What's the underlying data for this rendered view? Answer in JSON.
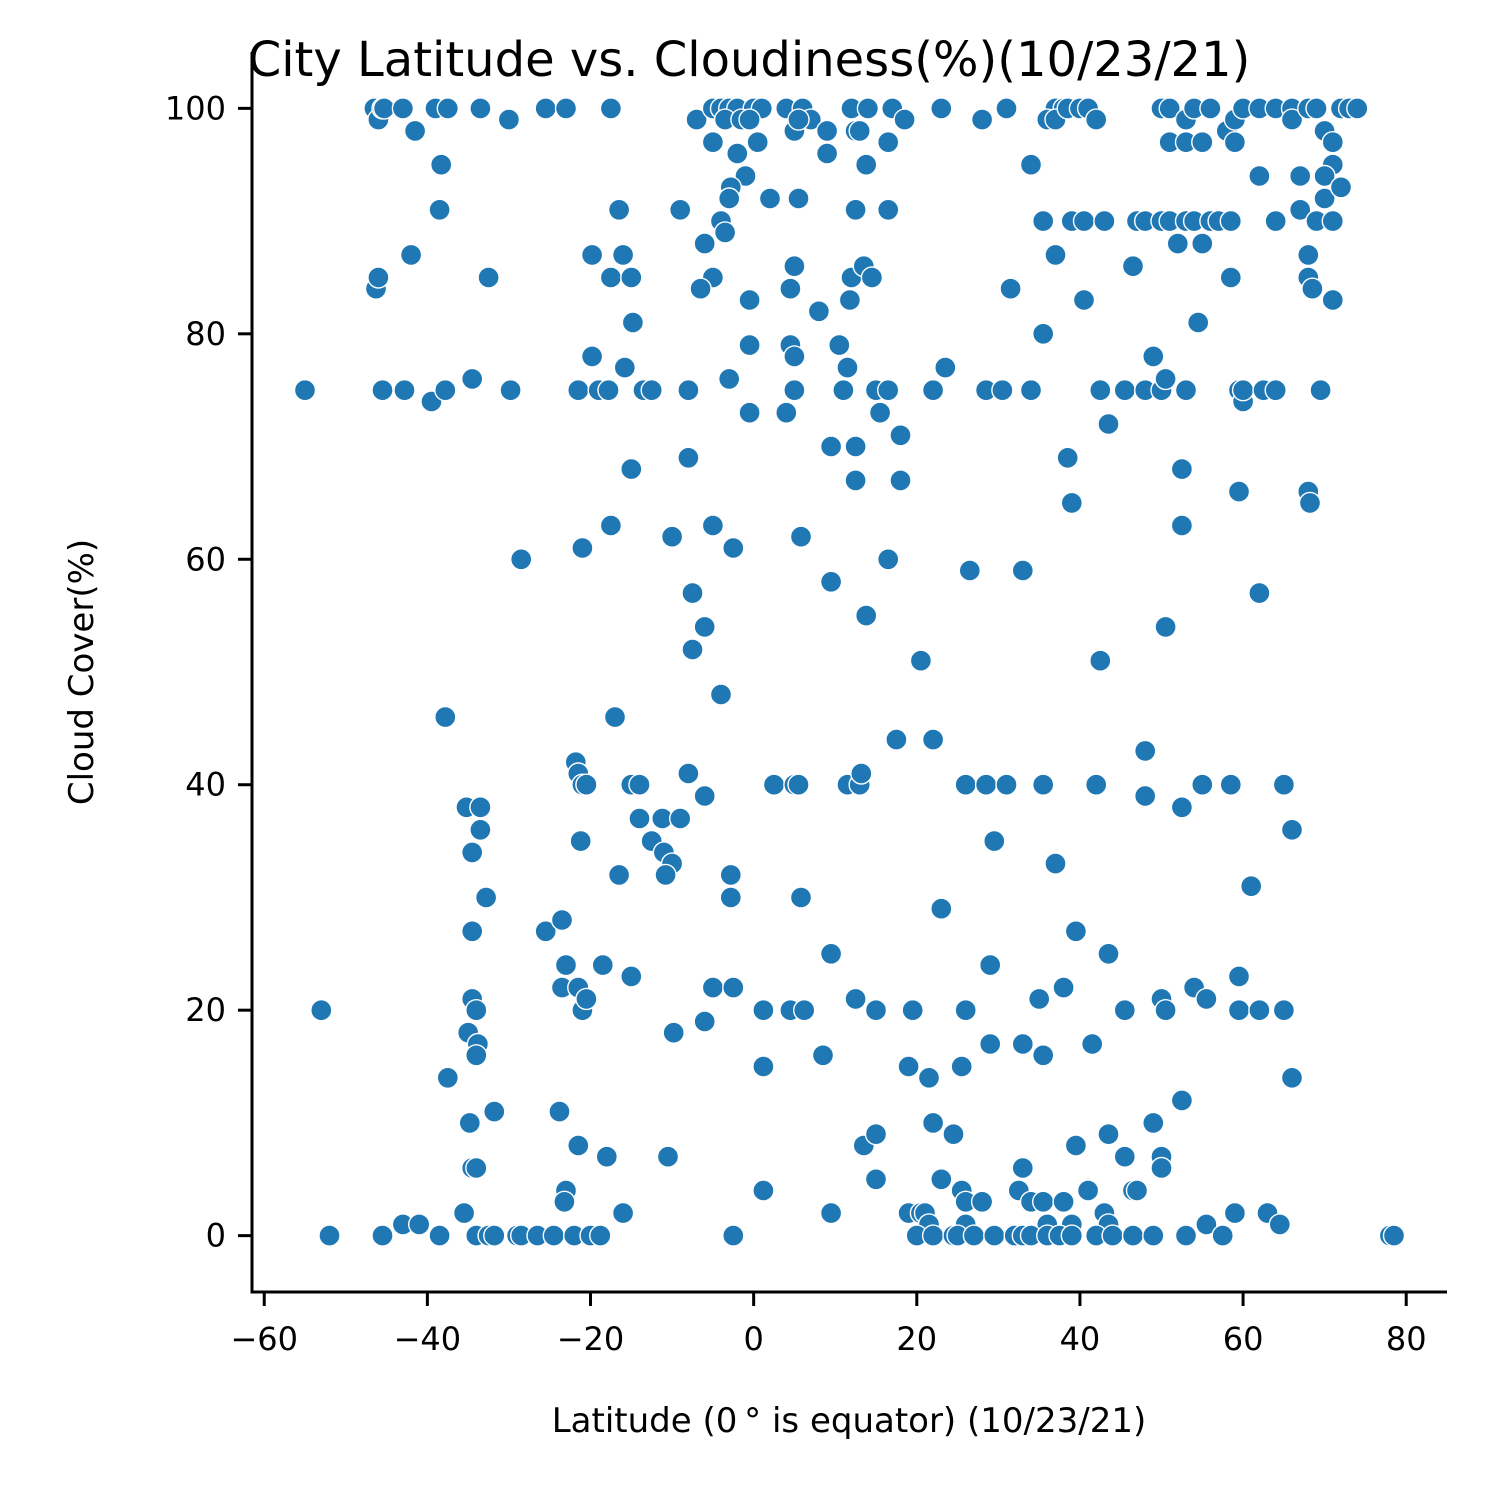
{
  "chart_data": {
    "type": "scatter",
    "title": "City Latitude vs. Cloudiness(%)(10/23/21)",
    "xlabel": "Latitude (0 °  is equator) (10/23/21)",
    "ylabel": "Cloud Cover(%)",
    "xlim": [
      -61.5,
      85
    ],
    "ylim": [
      -5,
      105
    ],
    "xticks": [
      -60,
      -40,
      -20,
      0,
      20,
      40,
      60,
      80
    ],
    "xtick_labels": [
      "−60",
      "−40",
      "−20",
      "0",
      "20",
      "40",
      "60",
      "80"
    ],
    "yticks": [
      0,
      20,
      40,
      60,
      80,
      100
    ],
    "ytick_labels": [
      "0",
      "20",
      "40",
      "60",
      "80",
      "100"
    ],
    "grid": false,
    "legend": "none",
    "point_color": "#1f77b4",
    "points": [
      [
        -46.5,
        100
      ],
      [
        -46,
        99
      ],
      [
        -45.5,
        100
      ],
      [
        -45.3,
        100
      ],
      [
        -43,
        100
      ],
      [
        -41.5,
        98
      ],
      [
        -39,
        100
      ],
      [
        -37.5,
        100
      ],
      [
        -33.5,
        100
      ],
      [
        -30,
        99
      ],
      [
        -25.5,
        100
      ],
      [
        -23,
        100
      ],
      [
        -17.5,
        100
      ],
      [
        -38.3,
        95
      ],
      [
        -38.5,
        91
      ],
      [
        -46.3,
        84
      ],
      [
        -46,
        85
      ],
      [
        -42,
        87
      ],
      [
        -32.5,
        85
      ],
      [
        -55,
        75
      ],
      [
        -45.5,
        75
      ],
      [
        -42.8,
        75
      ],
      [
        -39.5,
        74
      ],
      [
        -37.8,
        75
      ],
      [
        -34.5,
        76
      ],
      [
        -29.8,
        75
      ],
      [
        -21.5,
        75
      ],
      [
        -19,
        75
      ],
      [
        -17.8,
        75
      ],
      [
        -13.5,
        75
      ],
      [
        -12.5,
        75
      ],
      [
        -8,
        75
      ],
      [
        -19.8,
        87
      ],
      [
        -16.5,
        91
      ],
      [
        -17.5,
        85
      ],
      [
        -16,
        87
      ],
      [
        -15,
        85
      ],
      [
        -14.8,
        81
      ],
      [
        -19.8,
        78
      ],
      [
        -15.8,
        77
      ],
      [
        -15,
        68
      ],
      [
        -17.5,
        63
      ],
      [
        -21,
        61
      ],
      [
        -28.5,
        60
      ],
      [
        -10,
        62
      ],
      [
        -37.8,
        46
      ],
      [
        -17,
        46
      ],
      [
        -21.8,
        42
      ],
      [
        -21.5,
        41
      ],
      [
        -21,
        40
      ],
      [
        -20.5,
        40
      ],
      [
        -15,
        40
      ],
      [
        -14,
        40
      ],
      [
        -35.2,
        38
      ],
      [
        -33.5,
        38
      ],
      [
        -14,
        37
      ],
      [
        -11.2,
        37
      ],
      [
        -9,
        37
      ],
      [
        -33.5,
        36
      ],
      [
        -12.5,
        35
      ],
      [
        -21.2,
        35
      ],
      [
        -34.5,
        34
      ],
      [
        -11,
        34
      ],
      [
        -10,
        33
      ],
      [
        -16.5,
        32
      ],
      [
        -10.8,
        32
      ],
      [
        -32.8,
        30
      ],
      [
        -25.5,
        27
      ],
      [
        -34.5,
        27
      ],
      [
        -23.5,
        28
      ],
      [
        -23,
        24
      ],
      [
        -23.5,
        22
      ],
      [
        -21.5,
        22
      ],
      [
        -18.5,
        24
      ],
      [
        -15,
        23
      ],
      [
        -34.5,
        21
      ],
      [
        -34,
        20
      ],
      [
        -21,
        20
      ],
      [
        -20.5,
        21
      ],
      [
        -53,
        20
      ],
      [
        -35,
        18
      ],
      [
        -33.8,
        17
      ],
      [
        -34,
        16
      ],
      [
        -37.5,
        14
      ],
      [
        -31.8,
        11
      ],
      [
        -34.8,
        10
      ],
      [
        -23.8,
        11
      ],
      [
        -21.5,
        8
      ],
      [
        -18,
        7
      ],
      [
        -34.5,
        6
      ],
      [
        -34,
        6
      ],
      [
        -23,
        4
      ],
      [
        -23.2,
        3
      ],
      [
        -35.5,
        2
      ],
      [
        -16,
        2
      ],
      [
        -43,
        1
      ],
      [
        -41,
        1
      ],
      [
        -52,
        0
      ],
      [
        -45.5,
        0
      ],
      [
        -38.5,
        0
      ],
      [
        -34,
        0
      ],
      [
        -32.5,
        0
      ],
      [
        -31.8,
        0
      ],
      [
        -29,
        0
      ],
      [
        -28.5,
        0
      ],
      [
        -26.5,
        0
      ],
      [
        -24.5,
        0
      ],
      [
        -22,
        0
      ],
      [
        -20,
        0
      ],
      [
        -18.8,
        0
      ],
      [
        -7,
        99
      ],
      [
        -5,
        100
      ],
      [
        -4,
        100
      ],
      [
        -3,
        100
      ],
      [
        -2,
        100
      ],
      [
        -1,
        99
      ],
      [
        0,
        100
      ],
      [
        1,
        100
      ],
      [
        4,
        100
      ],
      [
        6,
        100
      ],
      [
        7,
        99
      ],
      [
        9,
        98
      ],
      [
        12,
        100
      ],
      [
        14,
        100
      ],
      [
        17,
        100
      ],
      [
        -3.5,
        99
      ],
      [
        -1.5,
        99
      ],
      [
        -0.5,
        99
      ],
      [
        5,
        98
      ],
      [
        5.5,
        99
      ],
      [
        12.5,
        98
      ],
      [
        13,
        98
      ],
      [
        9,
        96
      ],
      [
        -2,
        96
      ],
      [
        -5,
        97
      ],
      [
        0.5,
        97
      ],
      [
        16.5,
        97
      ],
      [
        13.8,
        95
      ],
      [
        -1,
        94
      ],
      [
        -2.8,
        93
      ],
      [
        -3,
        92
      ],
      [
        2,
        92
      ],
      [
        5.5,
        92
      ],
      [
        12.5,
        91
      ],
      [
        16.5,
        91
      ],
      [
        -9,
        91
      ],
      [
        -4,
        90
      ],
      [
        -3.5,
        89
      ],
      [
        -6,
        88
      ],
      [
        -5,
        85
      ],
      [
        -6.5,
        84
      ],
      [
        -0.5,
        83
      ],
      [
        4.5,
        84
      ],
      [
        5,
        86
      ],
      [
        8,
        82
      ],
      [
        12,
        85
      ],
      [
        13.5,
        86
      ],
      [
        14.5,
        85
      ],
      [
        11.8,
        83
      ],
      [
        -0.5,
        79
      ],
      [
        4.5,
        79
      ],
      [
        5,
        78
      ],
      [
        10.5,
        79
      ],
      [
        11.5,
        77
      ],
      [
        -3,
        76
      ],
      [
        5,
        75
      ],
      [
        11,
        75
      ],
      [
        15,
        75
      ],
      [
        16.5,
        75
      ],
      [
        -0.5,
        73
      ],
      [
        4,
        73
      ],
      [
        15.5,
        73
      ],
      [
        18,
        71
      ],
      [
        9.5,
        70
      ],
      [
        12.5,
        70
      ],
      [
        12.5,
        67
      ],
      [
        18,
        67
      ],
      [
        -8,
        69
      ],
      [
        -5,
        63
      ],
      [
        -2.5,
        61
      ],
      [
        5.8,
        62
      ],
      [
        16.5,
        60
      ],
      [
        9.5,
        58
      ],
      [
        -7.5,
        57
      ],
      [
        -6,
        54
      ],
      [
        -7.5,
        52
      ],
      [
        13.8,
        55
      ],
      [
        -4,
        48
      ],
      [
        17.5,
        44
      ],
      [
        -8,
        41
      ],
      [
        -6,
        39
      ],
      [
        2.5,
        40
      ],
      [
        5,
        40
      ],
      [
        5.5,
        40
      ],
      [
        11.5,
        40
      ],
      [
        13,
        40
      ],
      [
        13.2,
        41
      ],
      [
        -2.8,
        32
      ],
      [
        -2.8,
        30
      ],
      [
        5.8,
        30
      ],
      [
        -5,
        22
      ],
      [
        -2.5,
        22
      ],
      [
        -6,
        19
      ],
      [
        -9.8,
        18
      ],
      [
        1.2,
        20
      ],
      [
        4.5,
        20
      ],
      [
        6.2,
        20
      ],
      [
        12.5,
        21
      ],
      [
        15,
        20
      ],
      [
        9.5,
        25
      ],
      [
        8.5,
        16
      ],
      [
        1.2,
        15
      ],
      [
        -10.5,
        7
      ],
      [
        1.2,
        4
      ],
      [
        9.5,
        2
      ],
      [
        -2.5,
        0
      ],
      [
        13.5,
        8
      ],
      [
        15,
        9
      ],
      [
        15,
        5
      ],
      [
        23,
        100
      ],
      [
        28,
        99
      ],
      [
        31,
        100
      ],
      [
        37,
        100
      ],
      [
        38,
        100
      ],
      [
        36,
        99
      ],
      [
        37,
        99
      ],
      [
        38.5,
        100
      ],
      [
        40,
        100
      ],
      [
        41,
        100
      ],
      [
        42,
        99
      ],
      [
        50,
        100
      ],
      [
        51,
        100
      ],
      [
        53,
        99
      ],
      [
        54,
        100
      ],
      [
        56,
        100
      ],
      [
        58,
        98
      ],
      [
        59,
        97
      ],
      [
        59,
        99
      ],
      [
        60,
        100
      ],
      [
        62,
        100
      ],
      [
        64,
        100
      ],
      [
        66,
        100
      ],
      [
        66,
        99
      ],
      [
        68,
        100
      ],
      [
        69,
        100
      ],
      [
        70,
        98
      ],
      [
        71,
        97
      ],
      [
        71,
        95
      ],
      [
        72,
        100
      ],
      [
        73,
        100
      ],
      [
        74,
        100
      ],
      [
        18.5,
        99
      ],
      [
        34,
        95
      ],
      [
        35.5,
        90
      ],
      [
        39,
        90
      ],
      [
        40.5,
        90
      ],
      [
        43,
        90
      ],
      [
        47,
        90
      ],
      [
        48,
        90
      ],
      [
        50,
        90
      ],
      [
        51,
        90
      ],
      [
        53,
        90
      ],
      [
        54,
        90
      ],
      [
        56,
        90
      ],
      [
        57,
        90
      ],
      [
        58.5,
        90
      ],
      [
        64,
        90
      ],
      [
        62,
        94
      ],
      [
        67,
        94
      ],
      [
        67,
        91
      ],
      [
        70,
        94
      ],
      [
        70,
        92
      ],
      [
        72,
        93
      ],
      [
        69,
        90
      ],
      [
        71,
        90
      ],
      [
        51,
        97
      ],
      [
        53,
        97
      ],
      [
        55,
        97
      ],
      [
        52,
        88
      ],
      [
        55,
        88
      ],
      [
        58.5,
        85
      ],
      [
        68,
        87
      ],
      [
        68,
        85
      ],
      [
        68.5,
        84
      ],
      [
        71,
        83
      ],
      [
        31.5,
        84
      ],
      [
        37,
        87
      ],
      [
        40.5,
        83
      ],
      [
        54.5,
        81
      ],
      [
        35.5,
        80
      ],
      [
        23.5,
        77
      ],
      [
        22,
        75
      ],
      [
        28.5,
        75
      ],
      [
        30.5,
        75
      ],
      [
        34,
        75
      ],
      [
        42.5,
        75
      ],
      [
        45.5,
        75
      ],
      [
        48,
        75
      ],
      [
        50,
        75
      ],
      [
        50.5,
        76
      ],
      [
        53,
        75
      ],
      [
        59.5,
        75
      ],
      [
        60,
        74
      ],
      [
        60,
        75
      ],
      [
        62.5,
        75
      ],
      [
        64,
        75
      ],
      [
        69.5,
        75
      ],
      [
        49,
        78
      ],
      [
        43.5,
        72
      ],
      [
        38.5,
        69
      ],
      [
        52.5,
        68
      ],
      [
        46.5,
        86
      ],
      [
        39,
        65
      ],
      [
        59.5,
        66
      ],
      [
        68,
        66
      ],
      [
        68.2,
        65
      ],
      [
        52.5,
        63
      ],
      [
        26.5,
        59
      ],
      [
        33,
        59
      ],
      [
        20.5,
        51
      ],
      [
        42.5,
        51
      ],
      [
        50.5,
        54
      ],
      [
        62,
        57
      ],
      [
        61,
        31
      ],
      [
        22,
        44
      ],
      [
        26,
        40
      ],
      [
        28.5,
        40
      ],
      [
        31,
        40
      ],
      [
        35.5,
        40
      ],
      [
        42,
        40
      ],
      [
        48,
        43
      ],
      [
        48,
        39
      ],
      [
        52.5,
        38
      ],
      [
        55,
        40
      ],
      [
        58.5,
        40
      ],
      [
        65,
        40
      ],
      [
        66,
        36
      ],
      [
        29.5,
        35
      ],
      [
        37,
        33
      ],
      [
        23,
        29
      ],
      [
        39.5,
        27
      ],
      [
        43.5,
        25
      ],
      [
        29,
        24
      ],
      [
        19.5,
        20
      ],
      [
        26,
        20
      ],
      [
        35,
        21
      ],
      [
        38,
        22
      ],
      [
        45.5,
        20
      ],
      [
        50,
        21
      ],
      [
        50.5,
        20
      ],
      [
        54,
        22
      ],
      [
        55.5,
        21
      ],
      [
        59.5,
        20
      ],
      [
        59.5,
        23
      ],
      [
        62,
        20
      ],
      [
        65,
        20
      ],
      [
        29,
        17
      ],
      [
        33,
        17
      ],
      [
        41.5,
        17
      ],
      [
        35.5,
        16
      ],
      [
        19,
        15
      ],
      [
        25.5,
        15
      ],
      [
        21.5,
        14
      ],
      [
        66,
        14
      ],
      [
        52.5,
        12
      ],
      [
        22,
        10
      ],
      [
        24.5,
        9
      ],
      [
        49,
        10
      ],
      [
        43.5,
        9
      ],
      [
        39.5,
        8
      ],
      [
        45.5,
        7
      ],
      [
        50,
        7
      ],
      [
        50,
        6
      ],
      [
        33,
        6
      ],
      [
        23,
        5
      ],
      [
        32.5,
        4
      ],
      [
        41,
        4
      ],
      [
        46.5,
        4
      ],
      [
        47,
        4
      ],
      [
        25.5,
        4
      ],
      [
        26,
        3
      ],
      [
        28,
        3
      ],
      [
        34,
        3
      ],
      [
        35.5,
        3
      ],
      [
        38,
        3
      ],
      [
        19,
        2
      ],
      [
        20.5,
        2
      ],
      [
        21,
        2
      ],
      [
        43,
        2
      ],
      [
        59,
        2
      ],
      [
        63,
        2
      ],
      [
        21.5,
        1
      ],
      [
        26,
        1
      ],
      [
        36,
        1
      ],
      [
        39,
        1
      ],
      [
        43.5,
        1
      ],
      [
        55.5,
        1
      ],
      [
        64.5,
        1
      ],
      [
        20,
        0
      ],
      [
        22,
        0
      ],
      [
        24.5,
        0
      ],
      [
        25,
        0
      ],
      [
        27,
        0
      ],
      [
        29.5,
        0
      ],
      [
        32,
        0
      ],
      [
        33,
        0
      ],
      [
        34,
        0
      ],
      [
        36,
        0
      ],
      [
        37.5,
        0
      ],
      [
        39,
        0
      ],
      [
        42,
        0
      ],
      [
        44,
        0
      ],
      [
        46.5,
        0
      ],
      [
        49,
        0
      ],
      [
        53,
        0
      ],
      [
        57.5,
        0
      ],
      [
        78,
        0
      ],
      [
        78.5,
        0
      ]
    ]
  }
}
